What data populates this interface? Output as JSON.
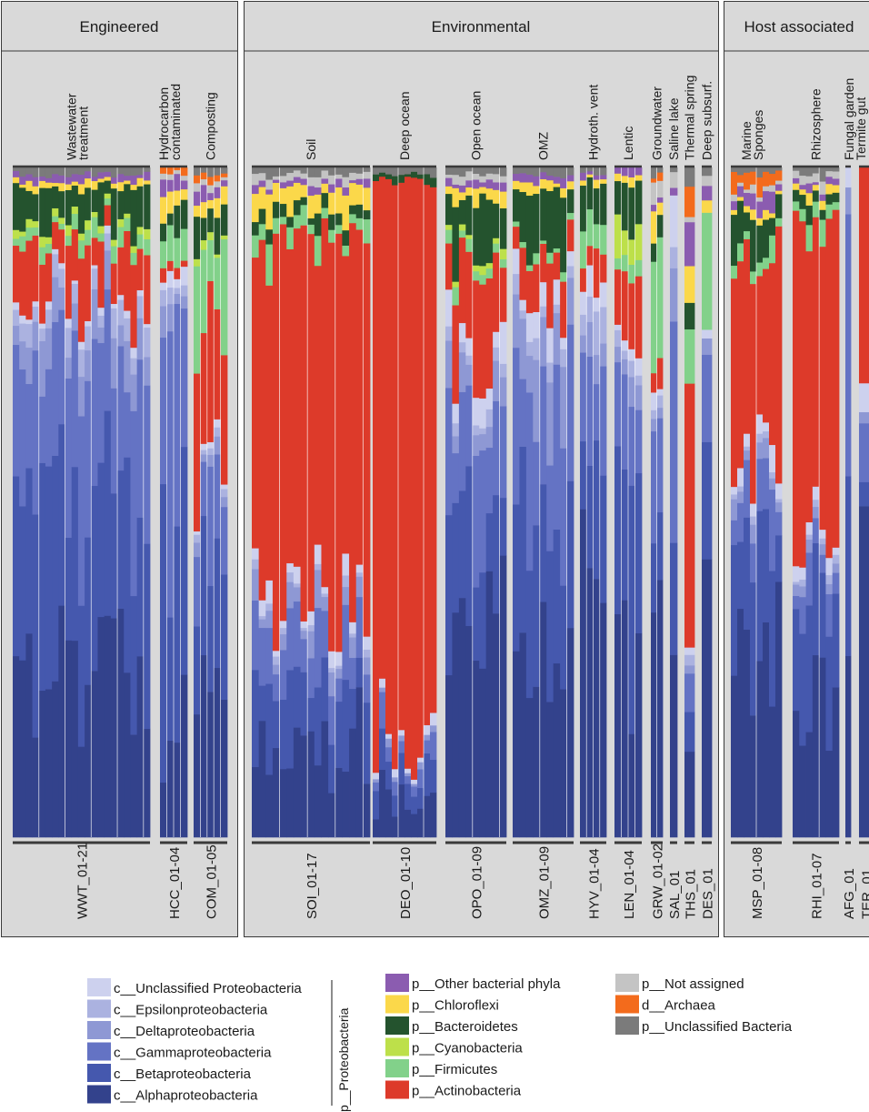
{
  "chart_data": {
    "type": "bar",
    "stacked": true,
    "ylim": [
      0,
      100
    ],
    "panels": [
      {
        "title": "Engineered",
        "groups": [
          {
            "label": "Wastewater\ntreatment",
            "code": "WWT_01-21",
            "n": 21
          },
          {
            "label": "Hydrocarbon\ncontaminated",
            "code": "HCC_01-04",
            "n": 4
          },
          {
            "label": "Composting",
            "code": "COM_01-05",
            "n": 5
          }
        ]
      },
      {
        "title": "Environmental",
        "groups": [
          {
            "label": "Soil",
            "code": "SOI_01-17",
            "n": 17
          },
          {
            "label": "Deep ocean",
            "code": "DEO_01-10",
            "n": 10
          },
          {
            "label": "Open ocean",
            "code": "OPO_01-09",
            "n": 9
          },
          {
            "label": "OMZ",
            "code": "OMZ_01-09",
            "n": 9
          },
          {
            "label": "Hydroth. vent",
            "code": "HYV_01-04",
            "n": 4
          },
          {
            "label": "Lentic",
            "code": "LEN_01-04",
            "n": 4
          },
          {
            "label": "Groundwater",
            "code": "GRW_01-02",
            "n": 2
          },
          {
            "label": "Saline lake",
            "code": "SAL_01",
            "n": 1
          },
          {
            "label": "Thermal spring",
            "code": "THS_01",
            "n": 1
          },
          {
            "label": "Deep subsurf.",
            "code": "DES_01",
            "n": 1
          }
        ]
      },
      {
        "title": "Host associated",
        "groups": [
          {
            "label": "Marine\nSponges",
            "code": "MSP_01-08",
            "n": 8
          },
          {
            "label": "Rhizosphere",
            "code": "RHI_01-07",
            "n": 7
          },
          {
            "label": "Fungal garden",
            "code": "AFG_01",
            "n": 1
          },
          {
            "label": "Termite gut",
            "code": "TER_01",
            "n": 1
          }
        ]
      }
    ],
    "taxa": [
      {
        "name": "c__Alphaproteobacteria",
        "color": "#33428c"
      },
      {
        "name": "c__Betaproteobacteria",
        "color": "#4558ae"
      },
      {
        "name": "c__Gammaproteobacteria",
        "color": "#6473c4"
      },
      {
        "name": "c__Deltaproteobacteria",
        "color": "#8e98d4"
      },
      {
        "name": "c__Epsilonproteobacteria",
        "color": "#abb2e0"
      },
      {
        "name": "c__Unclassified Proteobacteria",
        "color": "#cdd1ee"
      },
      {
        "name": "p__Actinobacteria",
        "color": "#dd3a2a"
      },
      {
        "name": "p__Firmicutes",
        "color": "#82d18a"
      },
      {
        "name": "p__Cyanobacteria",
        "color": "#bde04a"
      },
      {
        "name": "p__Bacteroidetes",
        "color": "#24532e"
      },
      {
        "name": "p__Chloroflexi",
        "color": "#fbd84a"
      },
      {
        "name": "p__Other bacterial phyla",
        "color": "#8b5cb0"
      },
      {
        "name": "p__Not assigned",
        "color": "#c4c4c4"
      },
      {
        "name": "d__Archaea",
        "color": "#f36b1c"
      },
      {
        "name": "p__Unclassified Bacteria",
        "color": "#7b7b7b"
      }
    ],
    "legend": {
      "col1": [
        "c__Unclassified Proteobacteria",
        "c__Epsilonproteobacteria",
        "c__Deltaproteobacteria",
        "c__Gammaproteobacteria",
        "c__Betaproteobacteria",
        "c__Alphaproteobacteria"
      ],
      "col2": [
        "p__Other bacterial phyla",
        "p__Chloroflexi",
        "p__Bacteroidetes",
        "p__Cyanobacteria",
        "p__Firmicutes",
        "p__Actinobacteria"
      ],
      "col3": [
        "p__Not assigned",
        "d__Archaea",
        "p__Unclassified Bacteria"
      ],
      "bracket_label": "p__Proteobacteria"
    },
    "group_mean_percent": {
      "WWT_01-21": [
        28,
        26,
        18,
        5,
        3,
        1,
        8,
        2,
        1,
        5,
        1,
        1,
        0,
        0,
        1
      ],
      "HCC_01-04": [
        16,
        30,
        30,
        3,
        2,
        2,
        2,
        4,
        0,
        4,
        3,
        2,
        1,
        1,
        0
      ],
      "COM_01-05": [
        20,
        15,
        14,
        2,
        1,
        1,
        22,
        12,
        1,
        5,
        2,
        2,
        1,
        1,
        1
      ],
      "SOI_01-17": [
        14,
        9,
        8,
        3,
        1,
        2,
        52,
        3,
        0,
        2,
        3,
        1,
        1,
        0,
        1
      ],
      "DEO_01-10": [
        5,
        4,
        3,
        1,
        0,
        1,
        84,
        0,
        0,
        1,
        0,
        0,
        0,
        0,
        1
      ],
      "OPO_01-09": [
        30,
        16,
        14,
        5,
        2,
        4,
        13,
        2,
        1,
        8,
        2,
        1,
        1,
        0,
        1
      ],
      "OMZ_01-09": [
        30,
        20,
        20,
        8,
        2,
        3,
        6,
        1,
        0,
        7,
        1,
        1,
        0,
        0,
        1
      ],
      "HYV_01-04": [
        36,
        20,
        12,
        5,
        5,
        4,
        6,
        4,
        0,
        5,
        1,
        1,
        0,
        0,
        1
      ],
      "LEN_01-04": [
        30,
        24,
        12,
        3,
        2,
        2,
        12,
        2,
        5,
        6,
        1,
        1,
        0,
        0,
        0
      ],
      "GRW_01-02": [
        30,
        20,
        12,
        3,
        2,
        2,
        4,
        15,
        0,
        3,
        4,
        1,
        2,
        1,
        1
      ],
      "SAL_01": [
        42,
        22,
        20,
        6,
        2,
        4,
        0,
        0,
        0,
        0,
        0,
        1,
        2,
        0,
        1
      ],
      "THS_01": [
        10,
        5,
        5,
        2,
        1,
        1,
        40,
        10,
        0,
        5,
        5,
        5,
        1,
        8,
        2
      ],
      "DES_01": [
        35,
        25,
        10,
        3,
        0,
        3,
        0,
        15,
        0,
        0,
        2,
        3,
        2,
        0,
        2
      ],
      "MSP_01-08": [
        30,
        16,
        6,
        2,
        1,
        2,
        30,
        2,
        0,
        4,
        1,
        2,
        1,
        2,
        1
      ],
      "RHI_01-07": [
        22,
        13,
        4,
        2,
        1,
        2,
        48,
        2,
        0,
        2,
        1,
        1,
        1,
        0,
        1
      ],
      "AFG_01": [
        22,
        30,
        38,
        4,
        0,
        6,
        0,
        0,
        0,
        0,
        0,
        0,
        0,
        0,
        0
      ],
      "TER_01": [
        40,
        5,
        5,
        2,
        0,
        2,
        35,
        0,
        0,
        0,
        0,
        0,
        0,
        0,
        0
      ]
    }
  }
}
